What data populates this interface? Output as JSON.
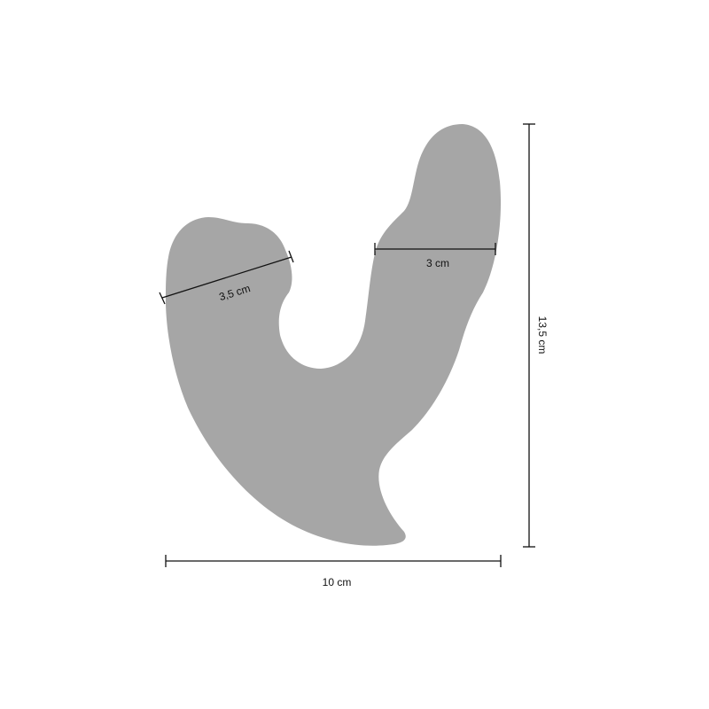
{
  "colors": {
    "shape": "#a6a6a6",
    "lines": "#111111",
    "background": "#ffffff"
  },
  "dimensions": {
    "height": "13,5 cm",
    "width": "10 cm",
    "left_diameter": "3,5 cm",
    "right_diameter": "3 cm"
  }
}
